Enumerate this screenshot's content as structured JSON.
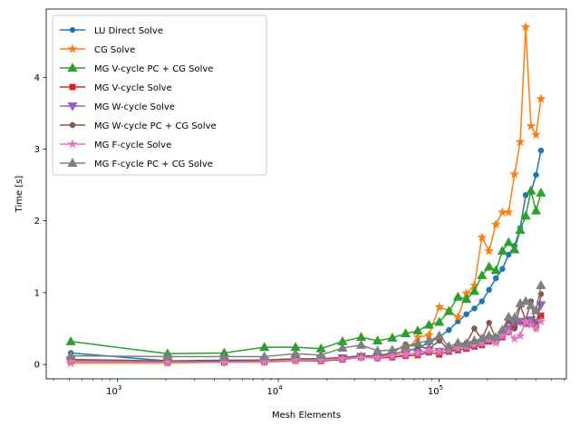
{
  "chart_data": {
    "type": "line",
    "title": "",
    "xlabel": "Mesh Elements",
    "ylabel": "Time [s]",
    "xscale": "log",
    "xlim": [
      360,
      620000
    ],
    "ylim": [
      -0.2,
      4.95
    ],
    "x_ticks": [
      {
        "value": 1000,
        "base": "10",
        "exp": "3"
      },
      {
        "value": 10000,
        "base": "10",
        "exp": "4"
      },
      {
        "value": 100000,
        "base": "10",
        "exp": "5"
      }
    ],
    "y_ticks": [
      {
        "value": 0,
        "label": "0"
      },
      {
        "value": 1,
        "label": "1"
      },
      {
        "value": 2,
        "label": "2"
      },
      {
        "value": 3,
        "label": "3"
      },
      {
        "value": 4,
        "label": "4"
      }
    ],
    "grid": false,
    "legend_position": "top-left",
    "x": [
      512,
      2048,
      4608,
      8192,
      12800,
      18432,
      25088,
      32768,
      41472,
      51200,
      61952,
      73728,
      86528,
      100352,
      115200,
      131072,
      147968,
      165888,
      184832,
      204800,
      225792,
      247808,
      270848,
      294912,
      320000,
      346112,
      373248,
      401408,
      430592
    ],
    "series": [
      {
        "name": "LU Direct Solve",
        "color": "#1f77b4",
        "marker": "circle",
        "values": [
          0.16,
          0.05,
          0.06,
          0.06,
          0.08,
          0.07,
          0.09,
          0.11,
          0.12,
          0.15,
          0.18,
          0.23,
          0.3,
          0.38,
          0.48,
          0.6,
          0.7,
          0.78,
          0.88,
          1.04,
          1.2,
          1.33,
          1.53,
          1.65,
          1.9,
          2.36,
          2.4,
          2.64,
          2.98
        ]
      },
      {
        "name": "CG Solve",
        "color": "#ff7f0e",
        "marker": "star",
        "values": [
          0.02,
          0.02,
          0.03,
          0.03,
          0.05,
          0.05,
          0.07,
          0.12,
          0.1,
          0.13,
          0.18,
          0.38,
          0.41,
          0.8,
          0.75,
          0.66,
          0.99,
          1.1,
          1.77,
          1.58,
          1.95,
          2.12,
          2.12,
          2.65,
          3.1,
          4.7,
          3.32,
          3.2,
          3.7
        ]
      },
      {
        "name": "MG V-cycle PC + CG Solve",
        "color": "#2ca02c",
        "marker": "triangle-up",
        "values": [
          0.32,
          0.15,
          0.16,
          0.24,
          0.24,
          0.22,
          0.32,
          0.38,
          0.33,
          0.37,
          0.43,
          0.47,
          0.55,
          0.59,
          0.74,
          0.94,
          0.91,
          1.02,
          1.24,
          1.36,
          1.31,
          1.58,
          1.7,
          1.6,
          1.87,
          2.07,
          2.42,
          2.14,
          2.39
        ]
      },
      {
        "name": "MG V-cycle Solve",
        "color": "#d62728",
        "marker": "square",
        "values": [
          0.05,
          0.03,
          0.03,
          0.04,
          0.06,
          0.05,
          0.07,
          0.1,
          0.09,
          0.1,
          0.12,
          0.13,
          0.17,
          0.14,
          0.18,
          0.2,
          0.22,
          0.25,
          0.27,
          0.32,
          0.33,
          0.38,
          0.45,
          0.55,
          0.6,
          0.57,
          0.61,
          0.55,
          0.68
        ]
      },
      {
        "name": "MG W-cycle Solve",
        "color": "#9467bd",
        "marker": "triangle-down",
        "values": [
          0.06,
          0.04,
          0.04,
          0.05,
          0.07,
          0.07,
          0.09,
          0.11,
          0.1,
          0.12,
          0.14,
          0.16,
          0.19,
          0.18,
          0.2,
          0.23,
          0.25,
          0.28,
          0.3,
          0.35,
          0.36,
          0.42,
          0.5,
          0.56,
          0.6,
          0.58,
          0.62,
          0.58,
          0.83
        ]
      },
      {
        "name": "MG W-cycle PC + CG Solve",
        "color": "#8c564b",
        "marker": "circle",
        "values": [
          0.07,
          0.05,
          0.05,
          0.06,
          0.08,
          0.08,
          0.1,
          0.12,
          0.12,
          0.16,
          0.28,
          0.25,
          0.22,
          0.33,
          0.22,
          0.24,
          0.3,
          0.5,
          0.35,
          0.58,
          0.36,
          0.48,
          0.6,
          0.5,
          0.82,
          0.62,
          0.88,
          0.5,
          0.98
        ]
      },
      {
        "name": "MG F-cycle Solve",
        "color": "#e377c2",
        "marker": "star",
        "values": [
          0.04,
          0.03,
          0.03,
          0.04,
          0.06,
          0.06,
          0.08,
          0.1,
          0.1,
          0.12,
          0.14,
          0.16,
          0.2,
          0.18,
          0.21,
          0.23,
          0.25,
          0.28,
          0.3,
          0.35,
          0.3,
          0.4,
          0.45,
          0.36,
          0.4,
          0.6,
          0.55,
          0.5,
          0.6
        ]
      },
      {
        "name": "MG F-cycle PC + CG Solve",
        "color": "#7f7f7f",
        "marker": "triangle-up",
        "values": [
          0.12,
          0.11,
          0.11,
          0.11,
          0.15,
          0.13,
          0.23,
          0.27,
          0.19,
          0.2,
          0.25,
          0.3,
          0.33,
          0.4,
          0.25,
          0.3,
          0.29,
          0.33,
          0.36,
          0.4,
          0.38,
          0.48,
          0.66,
          0.65,
          0.85,
          0.88,
          0.82,
          0.75,
          1.1
        ]
      }
    ]
  }
}
